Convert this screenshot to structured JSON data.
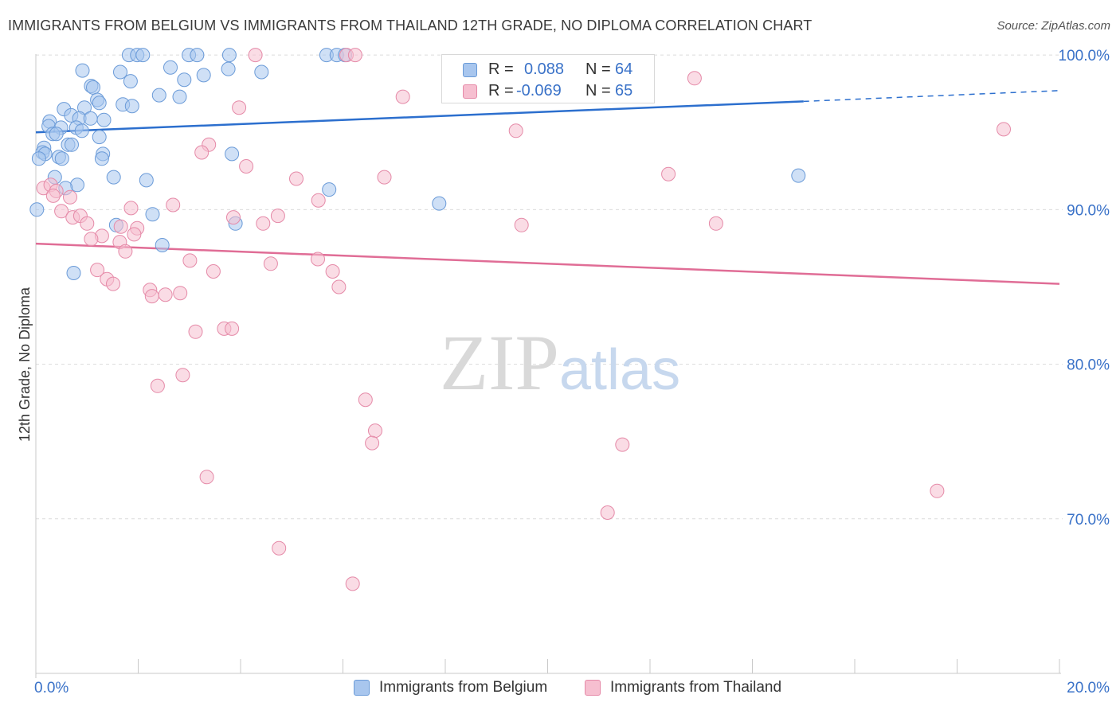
{
  "header": {
    "title": "IMMIGRANTS FROM BELGIUM VS IMMIGRANTS FROM THAILAND 12TH GRADE, NO DIPLOMA CORRELATION CHART",
    "source": "Source: ZipAtlas.com"
  },
  "watermark": {
    "zip": "ZIP",
    "atlas": "atlas"
  },
  "legend": {
    "rows": [
      {
        "r_label": "R =",
        "r_value": "0.088",
        "n_label": "N =",
        "n_value": "64",
        "color": "#a8c6ee",
        "border": "#6b9bd8"
      },
      {
        "r_label": "R =",
        "r_value": "-0.069",
        "n_label": "N =",
        "n_value": "65",
        "color": "#f6bfd0",
        "border": "#e58aa8"
      }
    ]
  },
  "bottom_legend": {
    "belgium": "Immigrants from Belgium",
    "thailand": "Immigrants from Thailand"
  },
  "chart_data": {
    "type": "scatter",
    "title": "IMMIGRANTS FROM BELGIUM VS IMMIGRANTS FROM THAILAND 12TH GRADE, NO DIPLOMA CORRELATION CHART",
    "xlabel": "",
    "ylabel": "12th Grade, No Diploma",
    "xlim": [
      0,
      20
    ],
    "ylim": [
      60,
      101.5
    ],
    "x_tick_labels": [
      "0.0%",
      "20.0%"
    ],
    "y_ticks": [
      70,
      80,
      90,
      100
    ],
    "y_tick_labels": [
      "70.0%",
      "80.0%",
      "90.0%",
      "100.0%"
    ],
    "grid": true,
    "legend_position": "top-center",
    "series": [
      {
        "name": "Immigrants from Belgium",
        "color": "#a8c6ee",
        "edge": "#6b9bd8",
        "line_color": "#2c6fce",
        "trend": {
          "x0": 0,
          "y0": 95.0,
          "x1": 15,
          "y1": 97.0,
          "dash_to_x": 20,
          "dash_to_y": 97.7
        },
        "points": [
          [
            1.82,
            100.0
          ],
          [
            1.98,
            100.0
          ],
          [
            2.09,
            100.0
          ],
          [
            2.99,
            100.0
          ],
          [
            3.15,
            100.0
          ],
          [
            3.78,
            100.0
          ],
          [
            5.68,
            100.0
          ],
          [
            5.88,
            100.0
          ],
          [
            6.04,
            100.0
          ],
          [
            0.91,
            99.0
          ],
          [
            1.65,
            98.9
          ],
          [
            2.63,
            99.2
          ],
          [
            3.28,
            98.7
          ],
          [
            3.76,
            99.1
          ],
          [
            4.41,
            98.9
          ],
          [
            1.85,
            98.3
          ],
          [
            1.08,
            98.0
          ],
          [
            1.12,
            97.9
          ],
          [
            2.9,
            98.4
          ],
          [
            2.41,
            97.4
          ],
          [
            2.81,
            97.3
          ],
          [
            1.2,
            97.1
          ],
          [
            1.24,
            96.9
          ],
          [
            1.7,
            96.8
          ],
          [
            1.88,
            96.7
          ],
          [
            0.95,
            96.6
          ],
          [
            0.55,
            96.5
          ],
          [
            0.69,
            96.1
          ],
          [
            0.85,
            95.9
          ],
          [
            1.07,
            95.9
          ],
          [
            1.33,
            95.8
          ],
          [
            0.27,
            95.7
          ],
          [
            0.25,
            95.4
          ],
          [
            0.49,
            95.3
          ],
          [
            0.79,
            95.3
          ],
          [
            0.9,
            95.1
          ],
          [
            0.33,
            94.9
          ],
          [
            0.4,
            94.9
          ],
          [
            1.24,
            94.7
          ],
          [
            0.63,
            94.2
          ],
          [
            0.7,
            94.2
          ],
          [
            0.16,
            94.0
          ],
          [
            0.13,
            93.7
          ],
          [
            0.18,
            93.6
          ],
          [
            1.31,
            93.6
          ],
          [
            3.83,
            93.6
          ],
          [
            0.06,
            93.3
          ],
          [
            0.45,
            93.4
          ],
          [
            0.51,
            93.3
          ],
          [
            1.29,
            93.3
          ],
          [
            0.37,
            92.1
          ],
          [
            1.52,
            92.1
          ],
          [
            2.16,
            91.9
          ],
          [
            14.9,
            92.2
          ],
          [
            0.81,
            91.6
          ],
          [
            0.58,
            91.4
          ],
          [
            5.73,
            91.3
          ],
          [
            0.02,
            90.0
          ],
          [
            7.88,
            90.4
          ],
          [
            2.28,
            89.7
          ],
          [
            1.57,
            89.0
          ],
          [
            3.9,
            89.1
          ],
          [
            2.47,
            87.7
          ],
          [
            0.74,
            85.9
          ]
        ]
      },
      {
        "name": "Immigrants from Thailand",
        "color": "#f6bfd0",
        "edge": "#e58aa8",
        "line_color": "#e06d96",
        "trend": {
          "x0": 0,
          "y0": 87.8,
          "x1": 20,
          "y1": 85.2
        },
        "points": [
          [
            4.29,
            100.0
          ],
          [
            6.07,
            100.0
          ],
          [
            6.24,
            100.0
          ],
          [
            12.87,
            98.5
          ],
          [
            7.17,
            97.3
          ],
          [
            3.97,
            96.6
          ],
          [
            9.38,
            95.1
          ],
          [
            18.91,
            95.2
          ],
          [
            3.38,
            94.2
          ],
          [
            3.24,
            93.7
          ],
          [
            4.11,
            92.8
          ],
          [
            12.36,
            92.3
          ],
          [
            5.09,
            92.0
          ],
          [
            6.81,
            92.1
          ],
          [
            0.15,
            91.4
          ],
          [
            0.29,
            91.6
          ],
          [
            0.4,
            91.2
          ],
          [
            0.34,
            90.9
          ],
          [
            0.67,
            90.8
          ],
          [
            5.52,
            90.6
          ],
          [
            1.86,
            90.1
          ],
          [
            2.68,
            90.3
          ],
          [
            0.5,
            89.9
          ],
          [
            0.72,
            89.5
          ],
          [
            0.87,
            89.6
          ],
          [
            1.0,
            89.1
          ],
          [
            3.86,
            89.5
          ],
          [
            4.73,
            89.6
          ],
          [
            4.44,
            89.1
          ],
          [
            9.49,
            89.0
          ],
          [
            13.29,
            89.1
          ],
          [
            1.66,
            88.9
          ],
          [
            1.98,
            88.8
          ],
          [
            1.92,
            88.4
          ],
          [
            1.29,
            88.3
          ],
          [
            1.08,
            88.1
          ],
          [
            1.64,
            87.9
          ],
          [
            1.75,
            87.3
          ],
          [
            3.01,
            86.7
          ],
          [
            5.51,
            86.8
          ],
          [
            4.59,
            86.5
          ],
          [
            1.2,
            86.1
          ],
          [
            3.47,
            86.0
          ],
          [
            5.8,
            86.0
          ],
          [
            1.39,
            85.5
          ],
          [
            1.51,
            85.2
          ],
          [
            5.92,
            85.0
          ],
          [
            2.23,
            84.8
          ],
          [
            2.27,
            84.4
          ],
          [
            2.53,
            84.5
          ],
          [
            2.82,
            84.6
          ],
          [
            3.12,
            82.1
          ],
          [
            3.68,
            82.3
          ],
          [
            3.83,
            82.3
          ],
          [
            2.87,
            79.3
          ],
          [
            2.38,
            78.6
          ],
          [
            6.44,
            77.7
          ],
          [
            6.63,
            75.7
          ],
          [
            6.57,
            74.9
          ],
          [
            11.46,
            74.8
          ],
          [
            3.34,
            72.7
          ],
          [
            17.61,
            71.8
          ],
          [
            11.17,
            70.4
          ],
          [
            4.75,
            68.1
          ],
          [
            6.19,
            65.8
          ]
        ]
      }
    ]
  }
}
